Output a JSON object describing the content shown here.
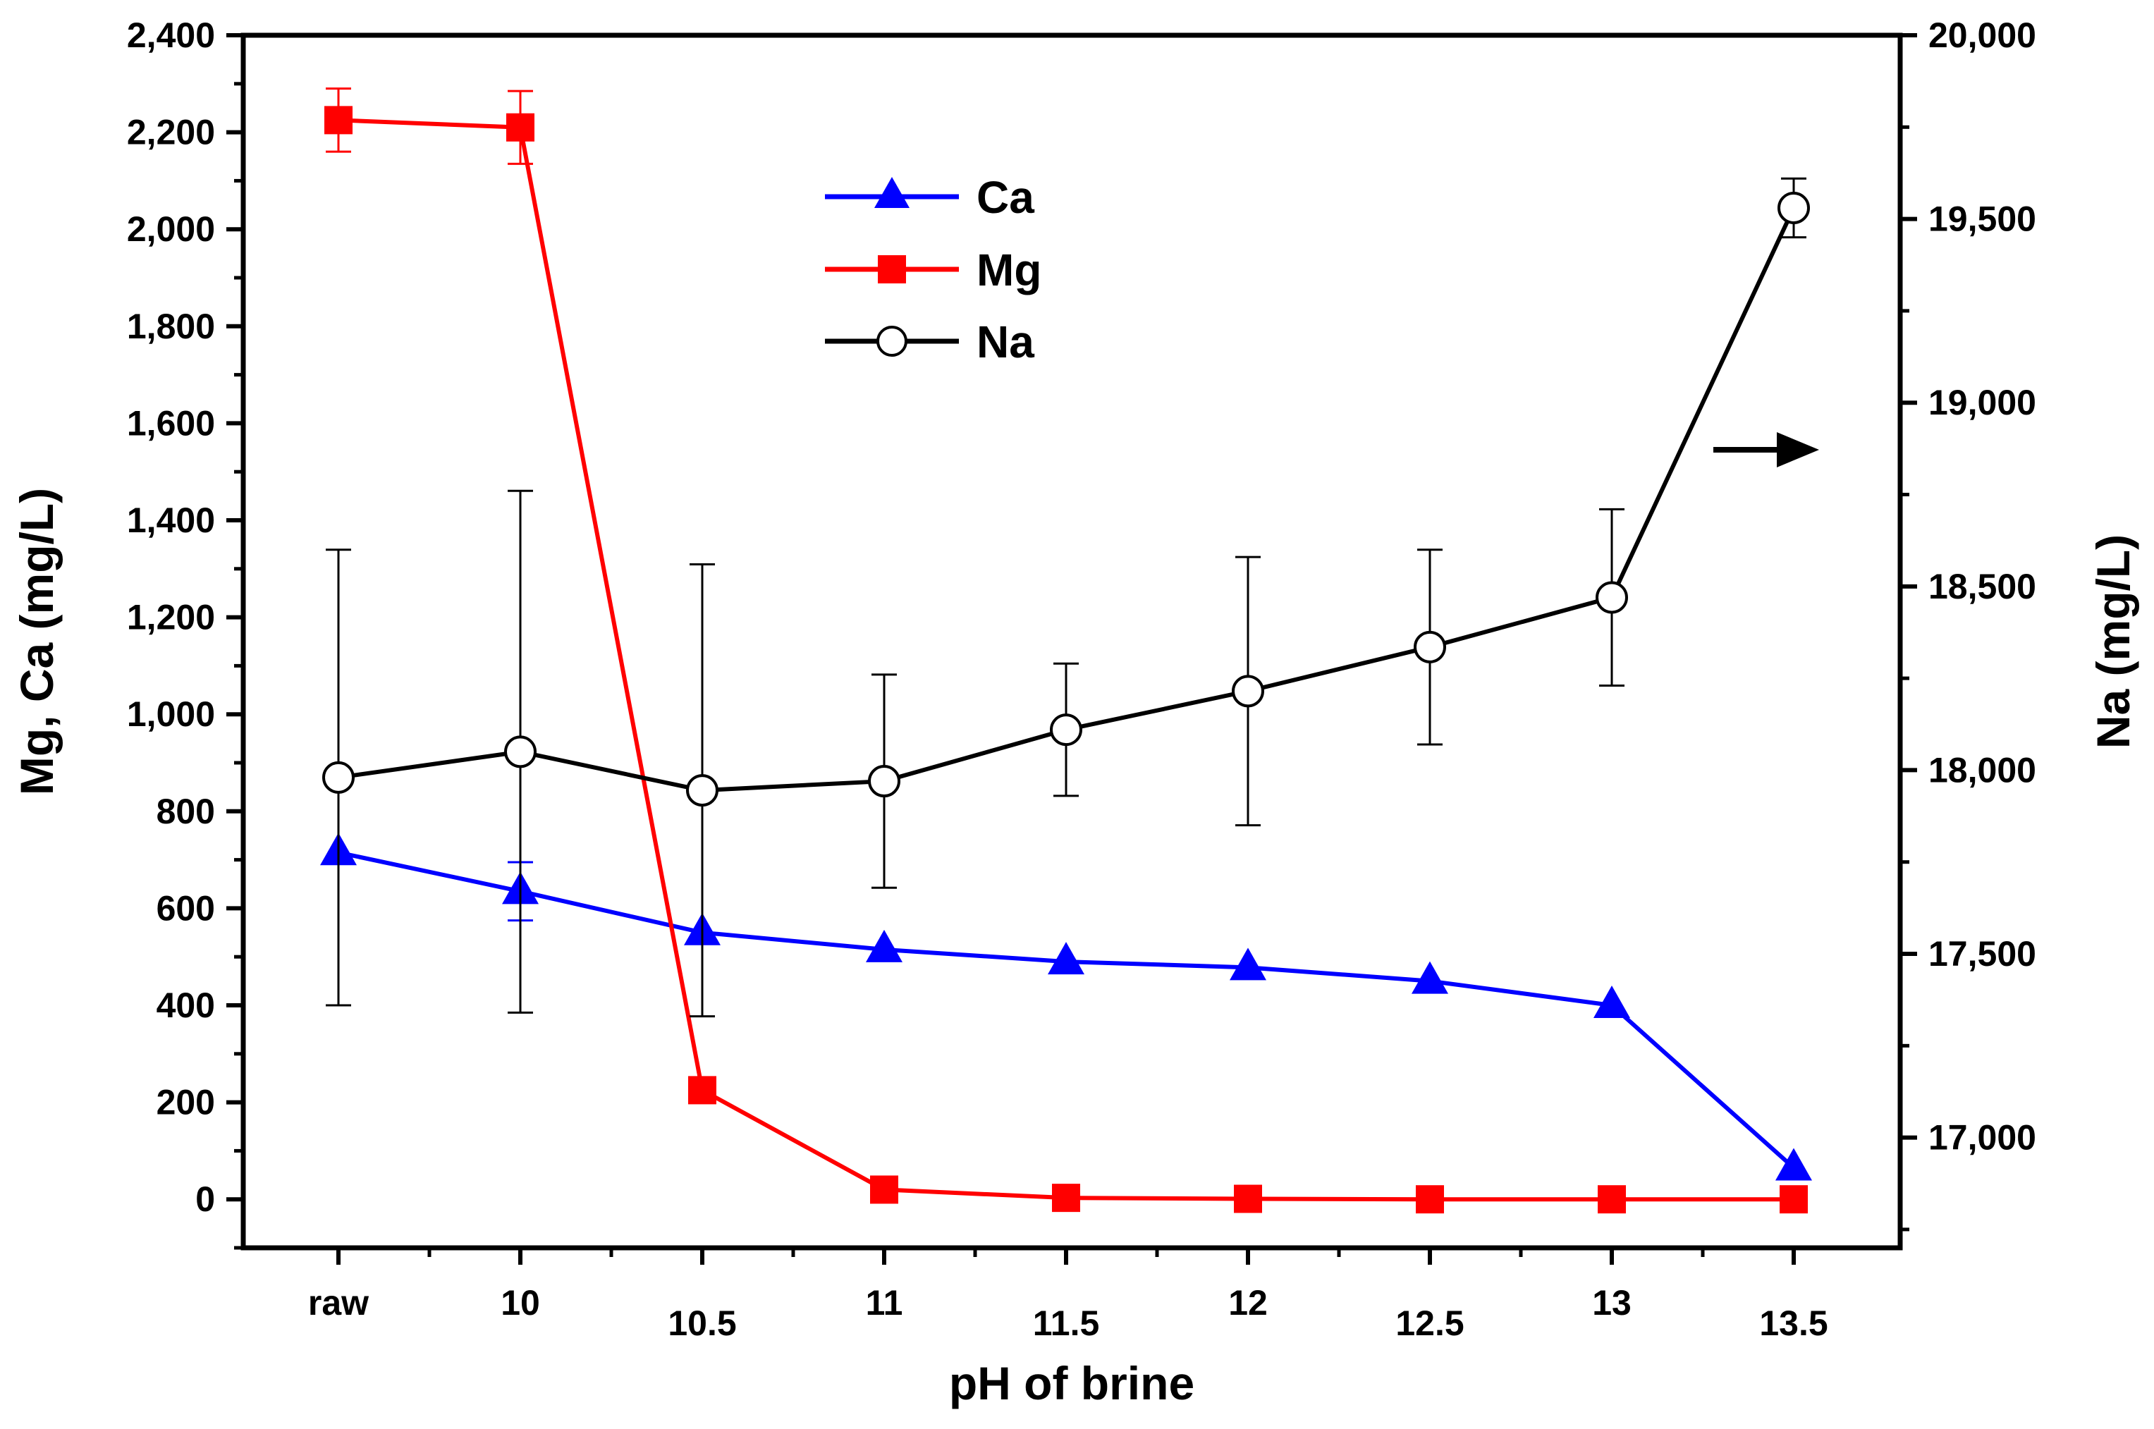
{
  "chart_data": {
    "type": "line",
    "xlabel": "pH of brine",
    "ylabel_left": "Mg, Ca (mg/L)",
    "ylabel_right": "Na (mg/L)",
    "categories": [
      "raw",
      "10",
      "10.5",
      "11",
      "11.5",
      "12",
      "12.5",
      "13",
      "13.5"
    ],
    "ylim_left": [
      -100,
      2400
    ],
    "ylim_right": [
      16700,
      20000
    ],
    "yticks_left": [
      0,
      200,
      400,
      600,
      800,
      1000,
      1200,
      1400,
      1600,
      1800,
      2000,
      2200,
      2400
    ],
    "yticks_left_labels": [
      "0",
      "200",
      "400",
      "600",
      "800",
      "1,000",
      "1,200",
      "1,400",
      "1,600",
      "1,800",
      "2,000",
      "2,200",
      "2,400"
    ],
    "yticks_right": [
      17000,
      17500,
      18000,
      18500,
      19000,
      19500,
      20000
    ],
    "yticks_right_labels": [
      "17,000",
      "17,500",
      "18,000",
      "18,500",
      "19,000",
      "19,500",
      "20,000"
    ],
    "legend_position": "top-center",
    "series": [
      {
        "name": "Ca",
        "axis": "left",
        "color": "#0000ff",
        "marker": "triangle",
        "values": [
          715,
          635,
          550,
          515,
          490,
          478,
          450,
          400,
          65
        ],
        "err": [
          0,
          60,
          0,
          0,
          0,
          0,
          0,
          0,
          0
        ]
      },
      {
        "name": "Mg",
        "axis": "left",
        "color": "#ff0000",
        "marker": "square",
        "values": [
          2225,
          2210,
          225,
          20,
          3,
          1,
          0,
          0,
          0
        ],
        "err": [
          65,
          75,
          0,
          0,
          0,
          0,
          0,
          0,
          0
        ]
      },
      {
        "name": "Na",
        "axis": "right",
        "color": "#000000",
        "marker": "open-circle",
        "values": [
          17980,
          18050,
          17945,
          17970,
          18110,
          18215,
          18335,
          18470,
          19530
        ],
        "err": [
          620,
          710,
          615,
          290,
          180,
          365,
          265,
          240,
          80
        ]
      }
    ],
    "annotation": "arrow pointing right (Na on right axis)"
  }
}
